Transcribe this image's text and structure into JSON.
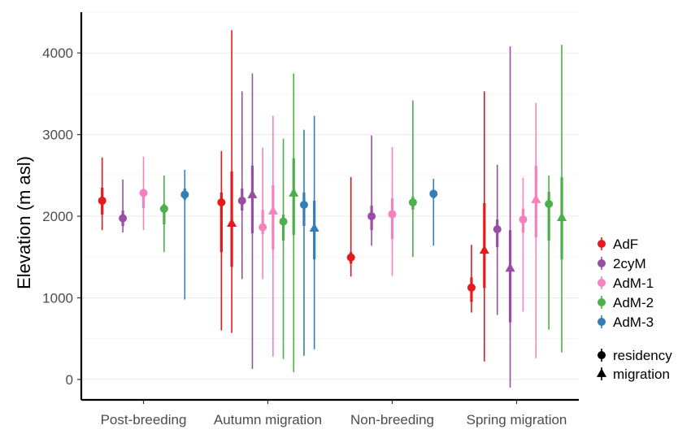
{
  "chart_data": {
    "type": "pointrange",
    "title": "",
    "xlabel": "",
    "ylabel": "Elevation (m asl)",
    "ylim": [
      -250,
      4500
    ],
    "yticks": [
      0,
      1000,
      2000,
      3000,
      4000
    ],
    "grid": true,
    "legend_position": "right",
    "categories": [
      "Post-breeding",
      "Autumn migration",
      "Non-breeding",
      "Spring migration"
    ],
    "series": [
      {
        "name": "AdF",
        "color": "#E41A1C"
      },
      {
        "name": "2cyM",
        "color": "#984EA3"
      },
      {
        "name": "AdM-1",
        "color": "#F781BF"
      },
      {
        "name": "AdM-2",
        "color": "#4DAF4A"
      },
      {
        "name": "AdM-3",
        "color": "#377EB8"
      }
    ],
    "shape_legend": [
      {
        "label": "residency",
        "shape": "circle"
      },
      {
        "label": "migration",
        "shape": "triangle"
      }
    ],
    "points": [
      {
        "category": "Post-breeding",
        "series": "AdF",
        "type": "residency",
        "y": 2190,
        "inner": [
          2020,
          2350
        ],
        "outer": [
          1830,
          2720
        ]
      },
      {
        "category": "Post-breeding",
        "series": "2cyM",
        "type": "residency",
        "y": 1975,
        "inner": [
          1880,
          2070
        ],
        "outer": [
          1800,
          2450
        ]
      },
      {
        "category": "Post-breeding",
        "series": "AdM-1",
        "type": "residency",
        "y": 2285,
        "inner": [
          2100,
          2330
        ],
        "outer": [
          1830,
          2730
        ]
      },
      {
        "category": "Post-breeding",
        "series": "AdM-2",
        "type": "residency",
        "y": 2090,
        "inner": [
          1900,
          2150
        ],
        "outer": [
          1560,
          2500
        ]
      },
      {
        "category": "Post-breeding",
        "series": "AdM-3",
        "type": "residency",
        "y": 2265,
        "inner": [
          2200,
          2340
        ],
        "outer": [
          980,
          2570
        ]
      },
      {
        "category": "Autumn migration",
        "series": "AdF",
        "type": "residency",
        "y": 2170,
        "inner": [
          1560,
          2290
        ],
        "outer": [
          600,
          2800
        ]
      },
      {
        "category": "Autumn migration",
        "series": "AdF",
        "type": "migration",
        "y": 1910,
        "inner": [
          1380,
          2550
        ],
        "outer": [
          570,
          4280
        ]
      },
      {
        "category": "Autumn migration",
        "series": "2cyM",
        "type": "residency",
        "y": 2190,
        "inner": [
          2070,
          2340
        ],
        "outer": [
          1230,
          3530
        ]
      },
      {
        "category": "Autumn migration",
        "series": "2cyM",
        "type": "migration",
        "y": 2260,
        "inner": [
          1790,
          2620
        ],
        "outer": [
          130,
          3750
        ]
      },
      {
        "category": "Autumn migration",
        "series": "AdM-1",
        "type": "residency",
        "y": 1865,
        "inner": [
          1780,
          2080
        ],
        "outer": [
          1230,
          2840
        ]
      },
      {
        "category": "Autumn migration",
        "series": "AdM-1",
        "type": "migration",
        "y": 2060,
        "inner": [
          1590,
          2380
        ],
        "outer": [
          280,
          3230
        ]
      },
      {
        "category": "Autumn migration",
        "series": "AdM-2",
        "type": "residency",
        "y": 1935,
        "inner": [
          1700,
          2020
        ],
        "outer": [
          250,
          2950
        ]
      },
      {
        "category": "Autumn migration",
        "series": "AdM-2",
        "type": "migration",
        "y": 2280,
        "inner": [
          1770,
          2710
        ],
        "outer": [
          90,
          3750
        ]
      },
      {
        "category": "Autumn migration",
        "series": "AdM-3",
        "type": "residency",
        "y": 2140,
        "inner": [
          1880,
          2290
        ],
        "outer": [
          290,
          3060
        ]
      },
      {
        "category": "Autumn migration",
        "series": "AdM-3",
        "type": "migration",
        "y": 1850,
        "inner": [
          1470,
          2190
        ],
        "outer": [
          370,
          3230
        ]
      },
      {
        "category": "Non-breeding",
        "series": "AdF",
        "type": "residency",
        "y": 1495,
        "inner": [
          1420,
          1560
        ],
        "outer": [
          1260,
          2480
        ]
      },
      {
        "category": "Non-breeding",
        "series": "2cyM",
        "type": "residency",
        "y": 2000,
        "inner": [
          1830,
          2130
        ],
        "outer": [
          1640,
          2990
        ]
      },
      {
        "category": "Non-breeding",
        "series": "AdM-1",
        "type": "residency",
        "y": 2025,
        "inner": [
          1720,
          2220
        ],
        "outer": [
          1270,
          2850
        ]
      },
      {
        "category": "Non-breeding",
        "series": "AdM-2",
        "type": "residency",
        "y": 2170,
        "inner": [
          2080,
          2240
        ],
        "outer": [
          1500,
          3420
        ]
      },
      {
        "category": "Non-breeding",
        "series": "AdM-3",
        "type": "residency",
        "y": 2275,
        "inner": [
          2220,
          2320
        ],
        "outer": [
          1640,
          2460
        ]
      },
      {
        "category": "Spring migration",
        "series": "AdF",
        "type": "residency",
        "y": 1125,
        "inner": [
          950,
          1250
        ],
        "outer": [
          820,
          1650
        ]
      },
      {
        "category": "Spring migration",
        "series": "AdF",
        "type": "migration",
        "y": 1580,
        "inner": [
          1120,
          2160
        ],
        "outer": [
          220,
          3530
        ]
      },
      {
        "category": "Spring migration",
        "series": "2cyM",
        "type": "residency",
        "y": 1840,
        "inner": [
          1620,
          1960
        ],
        "outer": [
          790,
          2630
        ]
      },
      {
        "category": "Spring migration",
        "series": "2cyM",
        "type": "migration",
        "y": 1360,
        "inner": [
          700,
          1830
        ],
        "outer": [
          -100,
          4080
        ]
      },
      {
        "category": "Spring migration",
        "series": "AdM-1",
        "type": "residency",
        "y": 1960,
        "inner": [
          1800,
          2090
        ],
        "outer": [
          830,
          2470
        ]
      },
      {
        "category": "Spring migration",
        "series": "AdM-1",
        "type": "migration",
        "y": 2200,
        "inner": [
          1740,
          2620
        ],
        "outer": [
          260,
          3390
        ]
      },
      {
        "category": "Spring migration",
        "series": "AdM-2",
        "type": "residency",
        "y": 2150,
        "inner": [
          1700,
          2300
        ],
        "outer": [
          610,
          2500
        ]
      },
      {
        "category": "Spring migration",
        "series": "AdM-2",
        "type": "migration",
        "y": 1980,
        "inner": [
          1470,
          2480
        ],
        "outer": [
          330,
          4100
        ]
      }
    ]
  }
}
